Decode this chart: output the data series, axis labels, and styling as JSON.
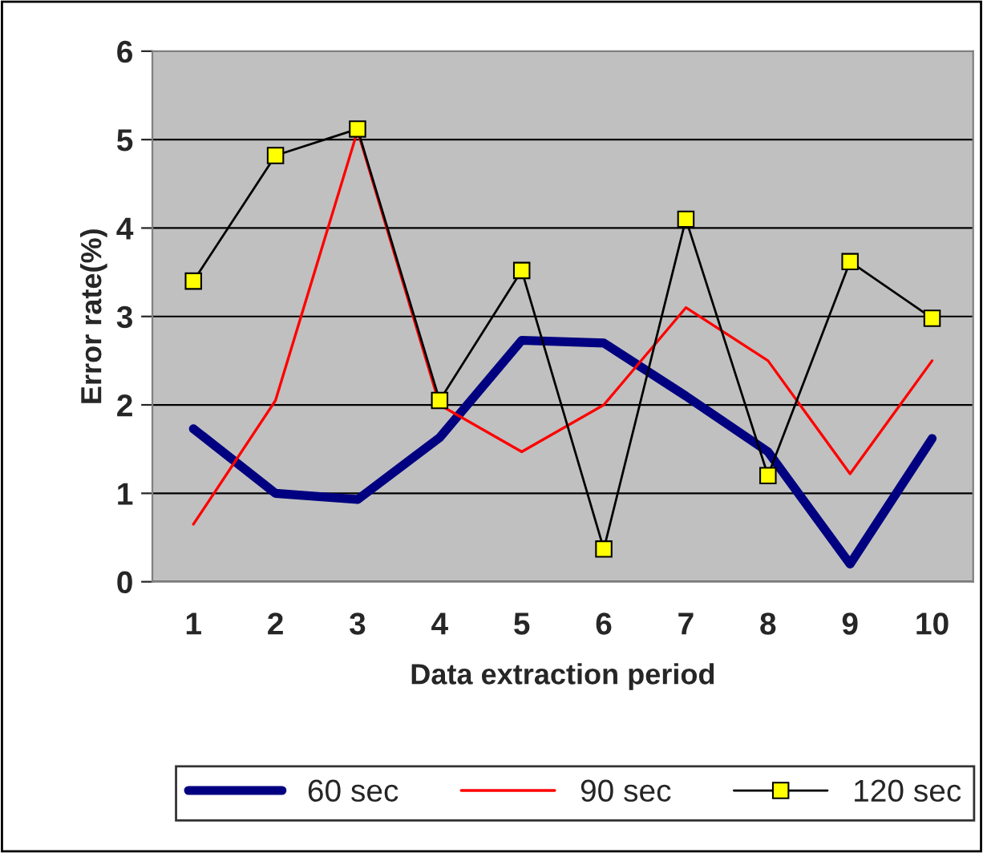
{
  "chart_data": {
    "type": "line",
    "xlabel": "Data extraction period",
    "ylabel": "Error rate(%)",
    "categories": [
      "1",
      "2",
      "3",
      "4",
      "5",
      "6",
      "7",
      "8",
      "9",
      "10"
    ],
    "ylim": [
      0,
      6
    ],
    "yticks": [
      0,
      1,
      2,
      3,
      4,
      5,
      6
    ],
    "grid": "y",
    "legend": "bottom",
    "series": [
      {
        "name": "60 sec",
        "color": "#000080",
        "marker": "none",
        "values": [
          1.73,
          1.0,
          0.93,
          1.63,
          2.73,
          2.7,
          2.1,
          1.47,
          0.2,
          1.62
        ]
      },
      {
        "name": "90 sec",
        "color": "#ff0000",
        "marker": "none",
        "values": [
          0.65,
          2.05,
          5.1,
          2.0,
          1.47,
          2.0,
          3.1,
          2.5,
          1.22,
          2.5
        ]
      },
      {
        "name": "120 sec",
        "color": "#000000",
        "marker": "square",
        "values": [
          3.4,
          4.82,
          5.12,
          2.05,
          3.52,
          0.37,
          4.1,
          1.2,
          3.62,
          2.98
        ]
      }
    ]
  }
}
